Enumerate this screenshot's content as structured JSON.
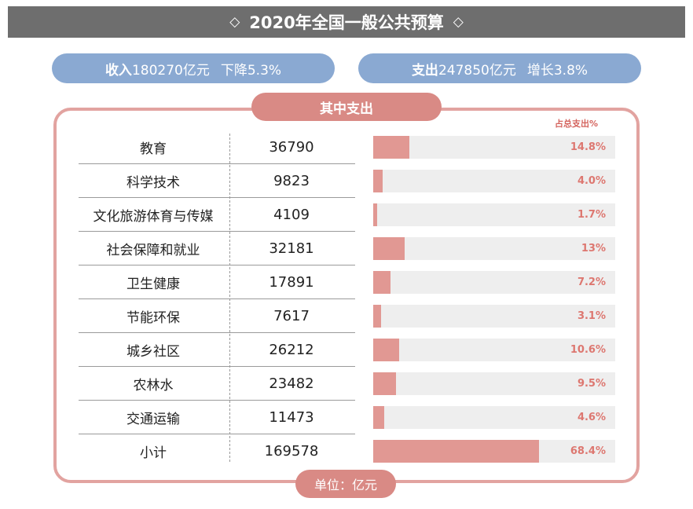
{
  "header": {
    "left_symbol": "◇",
    "title": "2020年全国一般公共预算",
    "right_symbol": "◇"
  },
  "summary": {
    "income_label": "收入",
    "income_value": "180270亿元",
    "income_change": "下降5.3%",
    "expense_label": "支出",
    "expense_value": "247850亿元",
    "expense_change": "增长3.8%"
  },
  "section_tab": "其中支出",
  "share_label": "占总支出%",
  "unit_tab": "单位：亿元",
  "colors": {
    "header_bg": "#6e6e6e",
    "pill_blue": "#8aa9d2",
    "accent_pink": "#d98a85",
    "bar_fill": "#e19893",
    "bar_track": "#eeeeee",
    "pct_text": "#dd7770"
  },
  "chart_data": {
    "type": "bar",
    "categories": [
      "教育",
      "科学技术",
      "文化旅游体育与传媒",
      "社会保障和就业",
      "卫生健康",
      "节能环保",
      "城乡社区",
      "农林水",
      "交通运输",
      "小计"
    ],
    "amounts": [
      "36790",
      "9823",
      "4109",
      "32181",
      "17891",
      "7617",
      "26212",
      "23482",
      "11473",
      "169578"
    ],
    "series": [
      {
        "values": [
          14.8,
          4.0,
          1.7,
          13,
          7.2,
          3.1,
          10.6,
          9.5,
          4.6,
          68.4
        ]
      }
    ],
    "value_labels": [
      "14.8%",
      "4.0%",
      "1.7%",
      "13%",
      "7.2%",
      "3.1%",
      "10.6%",
      "9.5%",
      "4.6%",
      "68.4%"
    ],
    "xlim": [
      0,
      100
    ],
    "orientation": "horizontal"
  }
}
